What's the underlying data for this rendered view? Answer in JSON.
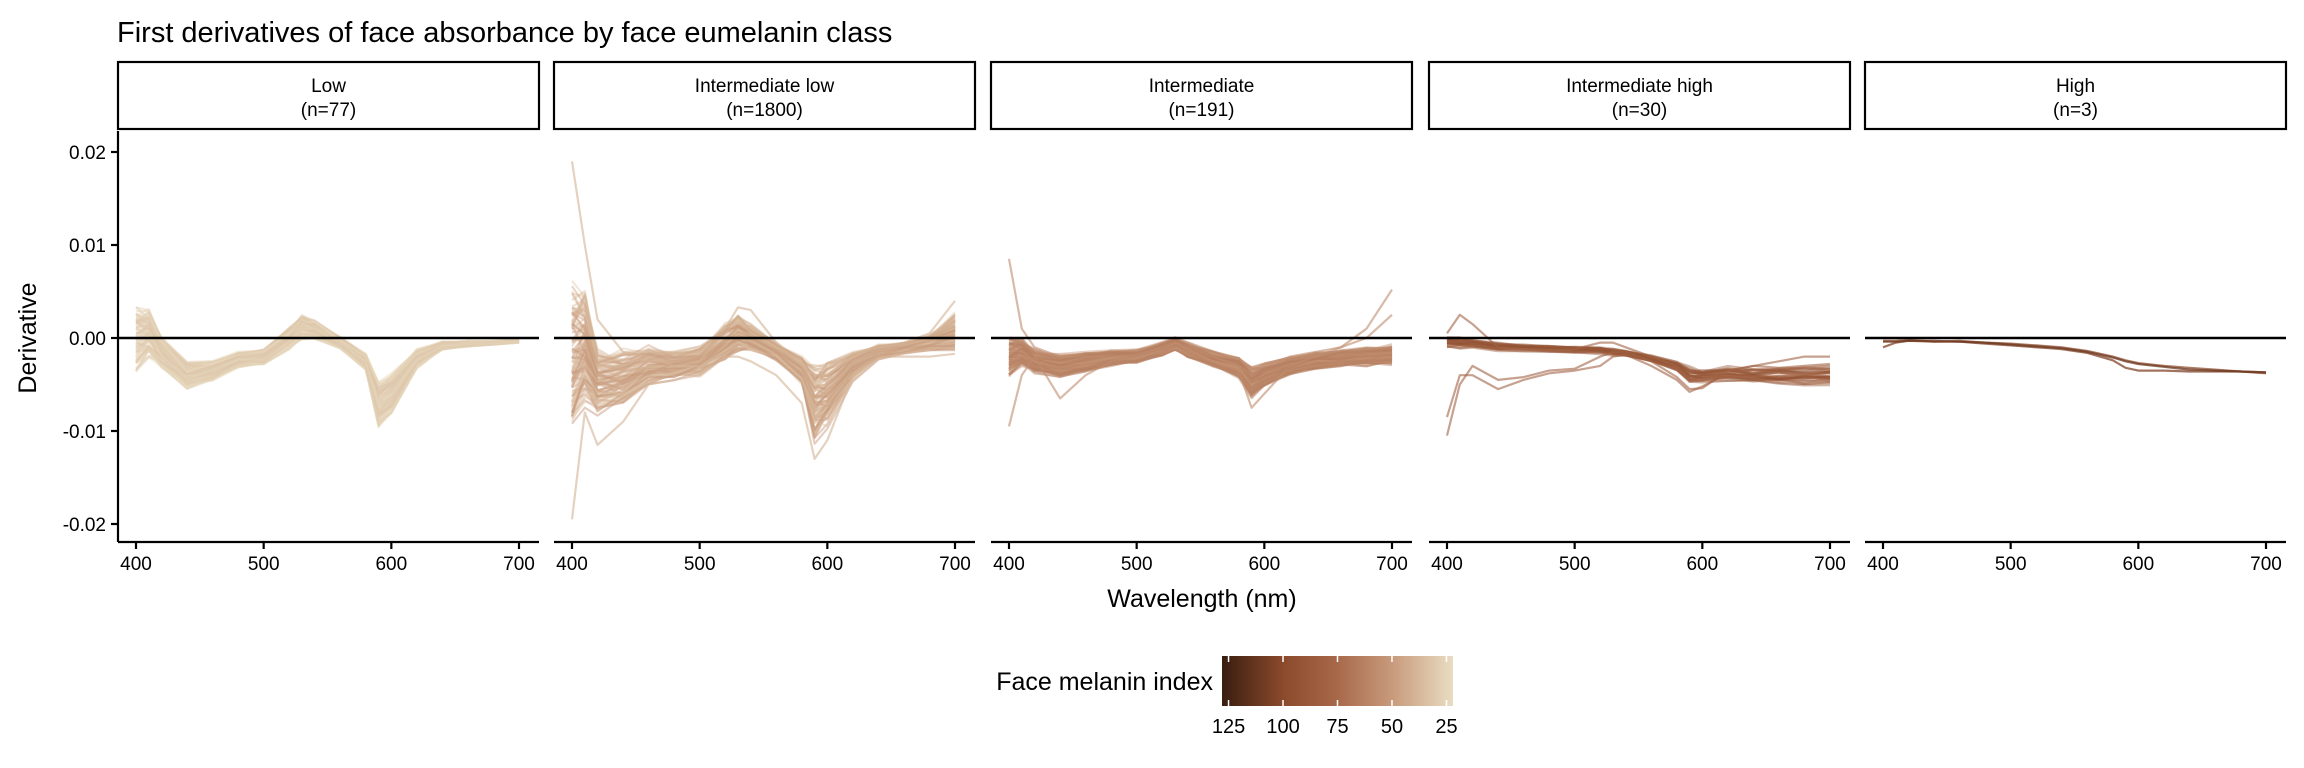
{
  "chart_data": {
    "type": "line",
    "title": "First derivatives of face absorbance by face eumelanin class",
    "xlabel": "Wavelength (nm)",
    "ylabel": "Derivative",
    "xlim": [
      385,
      715
    ],
    "ylim": [
      -0.022,
      0.0223
    ],
    "x_ticks": [
      "400",
      "500",
      "600",
      "700"
    ],
    "y_ticks": [
      {
        "value": 0.02,
        "label": "0.02"
      },
      {
        "value": 0.01,
        "label": "0.01"
      },
      {
        "value": 0.0,
        "label": "0.00"
      },
      {
        "value": -0.01,
        "label": "-0.01"
      },
      {
        "value": -0.02,
        "label": "-0.02"
      }
    ],
    "reference_line_y": 0,
    "grid": false,
    "wavelengths": [
      400,
      410,
      420,
      440,
      460,
      480,
      500,
      520,
      530,
      540,
      560,
      580,
      590,
      600,
      620,
      640,
      660,
      680,
      700
    ],
    "panels": [
      {
        "label": "Low",
        "count_label": "(n=77)",
        "n": 77,
        "melanin_range": [
          22,
          35
        ],
        "mean": [
          0,
          0.0005,
          -0.0015,
          -0.004,
          -0.0035,
          -0.0023,
          -0.002,
          0,
          0.0012,
          0.001,
          -0.0005,
          -0.0025,
          -0.007,
          -0.006,
          -0.0022,
          -0.0008,
          -0.0006,
          -0.0005,
          -0.0003
        ],
        "spread": [
          0.0035,
          0.0025,
          0.0015,
          0.0013,
          0.001,
          0.0008,
          0.0008,
          0.0011,
          0.0012,
          0.001,
          0.0006,
          0.0008,
          0.0025,
          0.002,
          0.001,
          0.0004,
          0.0003,
          0.0002,
          0.0002
        ]
      },
      {
        "label": "Intermediate low",
        "count_label": "(n=1800)",
        "n": 1800,
        "melanin_range": [
          30,
          55
        ],
        "mean": [
          -0.002,
          -0.001,
          -0.0045,
          -0.0045,
          -0.003,
          -0.003,
          -0.0025,
          -0.0005,
          0.0005,
          0,
          -0.0015,
          -0.0035,
          -0.007,
          -0.006,
          -0.003,
          -0.0015,
          -0.0011,
          -0.0005,
          0.0005
        ],
        "spread": [
          0.008,
          0.006,
          0.0035,
          0.003,
          0.002,
          0.0015,
          0.0015,
          0.002,
          0.002,
          0.0015,
          0.001,
          0.0015,
          0.004,
          0.0035,
          0.0015,
          0.0008,
          0.0006,
          0.0008,
          0.002
        ],
        "outliers": [
          [
            0.019,
            0.01,
            0.002,
            -0.0015,
            -0.002,
            -0.003,
            -0.0025,
            0.001,
            0.0033,
            0.003,
            -0.0005,
            -0.003,
            -0.004,
            -0.004,
            -0.002,
            -0.001,
            -0.0005,
            0.0005,
            0.004
          ],
          [
            -0.0195,
            -0.008,
            -0.0115,
            -0.009,
            -0.005,
            -0.0045,
            -0.004,
            -0.002,
            -0.002,
            -0.0025,
            -0.004,
            -0.007,
            -0.013,
            -0.011,
            -0.004,
            -0.002,
            -0.002,
            -0.002,
            -0.0017
          ]
        ]
      },
      {
        "label": "Intermediate",
        "count_label": "(n=191)",
        "n": 191,
        "melanin_range": [
          50,
          68
        ],
        "mean": [
          -0.002,
          -0.0015,
          -0.0025,
          -0.003,
          -0.0026,
          -0.0022,
          -0.002,
          -0.0012,
          -0.0006,
          -0.0013,
          -0.0023,
          -0.0032,
          -0.0048,
          -0.004,
          -0.003,
          -0.0025,
          -0.0022,
          -0.002,
          -0.0018
        ],
        "spread": [
          0.002,
          0.0015,
          0.0012,
          0.0012,
          0.001,
          0.0008,
          0.0007,
          0.0007,
          0.0007,
          0.0008,
          0.0008,
          0.001,
          0.0015,
          0.0012,
          0.0009,
          0.0009,
          0.0009,
          0.001,
          0.001
        ],
        "outliers": [
          [
            0.0085,
            0.001,
            -0.001,
            -0.002,
            -0.002,
            -0.002,
            -0.0018,
            -0.001,
            -0.0005,
            -0.001,
            -0.002,
            -0.003,
            -0.004,
            -0.003,
            -0.002,
            -0.0015,
            -0.001,
            0.001,
            0.0052
          ],
          [
            -0.0095,
            -0.004,
            -0.002,
            -0.0065,
            -0.004,
            -0.0025,
            -0.002,
            -0.0015,
            -0.001,
            -0.0015,
            -0.0025,
            -0.0035,
            -0.0075,
            -0.006,
            -0.003,
            -0.002,
            -0.001,
            0,
            0.0025
          ]
        ]
      },
      {
        "label": "Intermediate high",
        "count_label": "(n=30)",
        "n": 30,
        "melanin_range": [
          70,
          95
        ],
        "mean": [
          -0.0004,
          -0.0005,
          -0.0006,
          -0.0009,
          -0.001,
          -0.0011,
          -0.0012,
          -0.0013,
          -0.0015,
          -0.0016,
          -0.0022,
          -0.003,
          -0.004,
          -0.004,
          -0.0038,
          -0.004,
          -0.004,
          -0.004,
          -0.004
        ],
        "spread": [
          0.0006,
          0.0006,
          0.0005,
          0.0005,
          0.0004,
          0.0004,
          0.0004,
          0.0004,
          0.0004,
          0.0004,
          0.0004,
          0.0005,
          0.001,
          0.0008,
          0.0008,
          0.0009,
          0.001,
          0.001,
          0.001
        ],
        "outliers": [
          [
            0.0005,
            0.0025,
            0.0015,
            -0.001,
            -0.0012,
            -0.0013,
            -0.0012,
            -0.0005,
            -0.0005,
            -0.001,
            -0.002,
            -0.003,
            -0.0045,
            -0.0045,
            -0.0035,
            -0.003,
            -0.0025,
            -0.002,
            -0.002
          ],
          [
            -0.0105,
            -0.005,
            -0.003,
            -0.0045,
            -0.0042,
            -0.0035,
            -0.0033,
            -0.002,
            -0.0015,
            -0.0015,
            -0.0025,
            -0.0042,
            -0.0055,
            -0.0054,
            -0.0035,
            -0.003,
            -0.0032,
            -0.003,
            -0.0028
          ],
          [
            -0.0085,
            -0.004,
            -0.004,
            -0.0055,
            -0.0045,
            -0.0038,
            -0.0035,
            -0.003,
            -0.002,
            -0.0018,
            -0.003,
            -0.0045,
            -0.0058,
            -0.0052,
            -0.0038,
            -0.0034,
            -0.0033,
            -0.0032,
            -0.003
          ]
        ]
      },
      {
        "label": "High",
        "count_label": "(n=3)",
        "n": 3,
        "melanin_range": [
          95,
          110
        ],
        "lines": [
          [
            -0.0003,
            -0.0003,
            -0.0002,
            -0.0004,
            -0.0003,
            -0.0005,
            -0.0006,
            -0.0008,
            -0.0009,
            -0.001,
            -0.0014,
            -0.002,
            -0.0024,
            -0.0027,
            -0.003,
            -0.0032,
            -0.0034,
            -0.0036,
            -0.0038
          ],
          [
            -0.001,
            -0.0005,
            -0.0003,
            -0.0004,
            -0.0004,
            -0.0006,
            -0.0008,
            -0.001,
            -0.0011,
            -0.0012,
            -0.0016,
            -0.0024,
            -0.0032,
            -0.0035,
            -0.0035,
            -0.0036,
            -0.0036,
            -0.0036,
            -0.0037
          ],
          [
            -0.0004,
            -0.0004,
            -0.0003,
            -0.0003,
            -0.0004,
            -0.0005,
            -0.0007,
            -0.0009,
            -0.001,
            -0.0011,
            -0.0015,
            -0.0021,
            -0.0025,
            -0.0028,
            -0.0031,
            -0.0034,
            -0.0035,
            -0.0036,
            -0.0037
          ]
        ]
      }
    ],
    "legend": {
      "title": "Face melanin index",
      "placement": "bottom",
      "ticks": [
        "125",
        "100",
        "75",
        "50",
        "25"
      ],
      "tick_values": [
        125,
        100,
        75,
        50,
        25
      ],
      "range": [
        128,
        22
      ],
      "colors": [
        {
          "value": 128,
          "color": "#3a1d10"
        },
        {
          "value": 100,
          "color": "#8a4a2b"
        },
        {
          "value": 75,
          "color": "#a8694a"
        },
        {
          "value": 50,
          "color": "#c89a7c"
        },
        {
          "value": 22,
          "color": "#e9ddc2"
        }
      ]
    }
  }
}
